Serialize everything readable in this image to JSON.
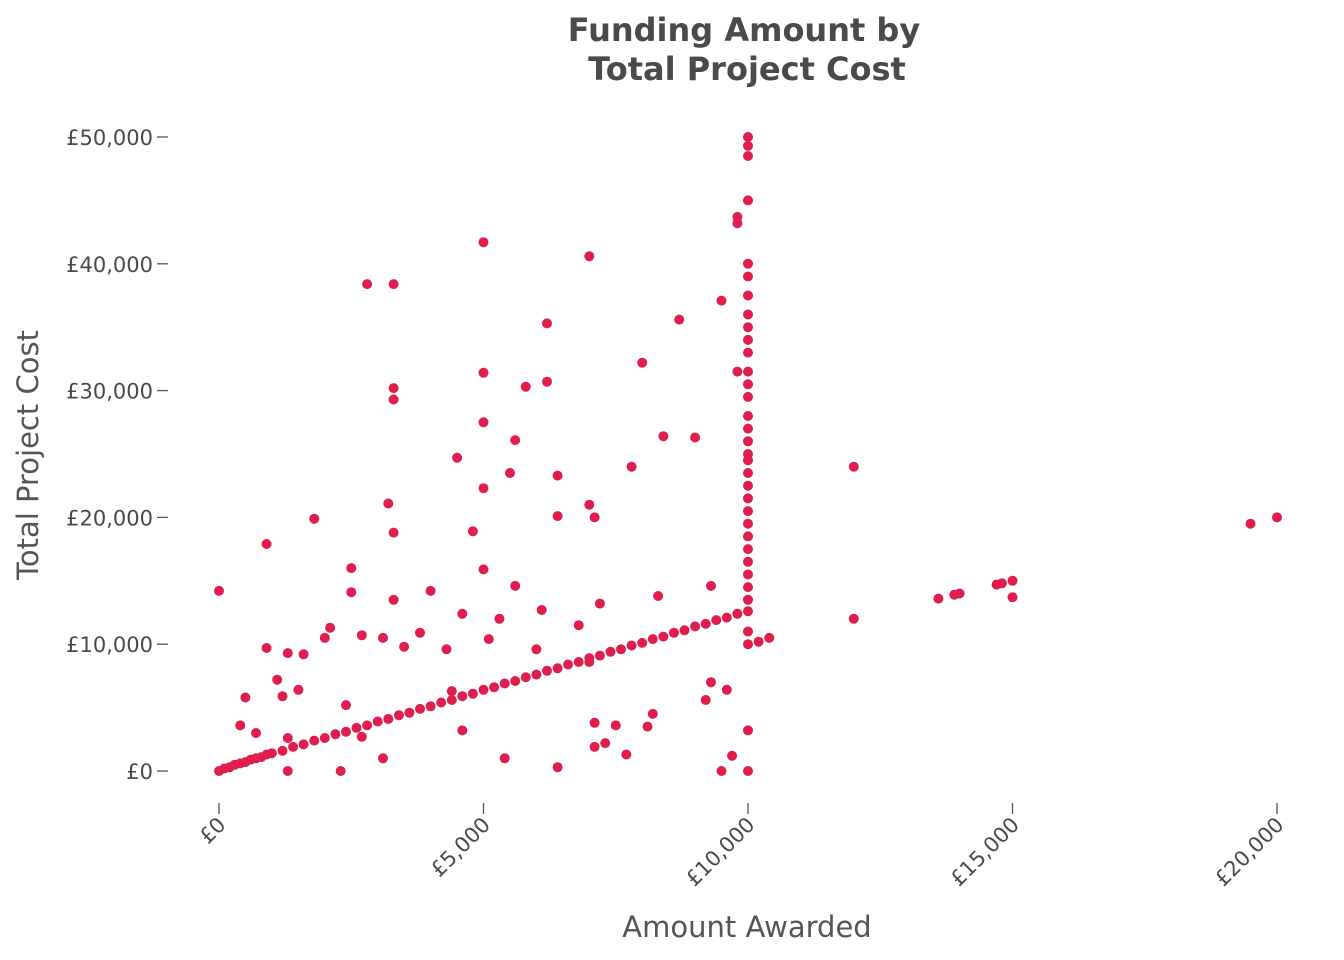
{
  "chart_data": {
    "type": "scatter",
    "title_lines": [
      "Funding Amount by",
      "Total Project Cost"
    ],
    "xlabel": "Amount Awarded",
    "ylabel": "Total Project Cost",
    "xlim": [
      -350,
      20250
    ],
    "ylim": [
      -2000,
      50500
    ],
    "x_ticks": [
      {
        "value": 0,
        "label": "£0"
      },
      {
        "value": 5000,
        "label": "£5,000"
      },
      {
        "value": 10000,
        "label": "£10,000"
      },
      {
        "value": 15000,
        "label": "£15,000"
      },
      {
        "value": 20000,
        "label": "£20,000"
      }
    ],
    "y_ticks": [
      {
        "value": 0,
        "label": "£0"
      },
      {
        "value": 10000,
        "label": "£10,000"
      },
      {
        "value": 20000,
        "label": "£20,000"
      },
      {
        "value": 30000,
        "label": "£30,000"
      },
      {
        "value": 40000,
        "label": "£40,000"
      },
      {
        "value": 50000,
        "label": "£50,000"
      }
    ],
    "grid": false,
    "legend": "none",
    "point_color": "#e01e4d",
    "points": [
      [
        0,
        14200
      ],
      [
        0,
        0
      ],
      [
        100,
        200
      ],
      [
        200,
        300
      ],
      [
        300,
        500
      ],
      [
        400,
        600
      ],
      [
        500,
        700
      ],
      [
        600,
        900
      ],
      [
        700,
        1000
      ],
      [
        800,
        1100
      ],
      [
        900,
        1300
      ],
      [
        1000,
        1400
      ],
      [
        1200,
        1600
      ],
      [
        1400,
        1900
      ],
      [
        1600,
        2100
      ],
      [
        1800,
        2400
      ],
      [
        2000,
        2600
      ],
      [
        2200,
        2900
      ],
      [
        2400,
        3100
      ],
      [
        2600,
        3400
      ],
      [
        2800,
        3600
      ],
      [
        3000,
        3900
      ],
      [
        3200,
        4100
      ],
      [
        3400,
        4400
      ],
      [
        3600,
        4600
      ],
      [
        3800,
        4900
      ],
      [
        4000,
        5100
      ],
      [
        4200,
        5400
      ],
      [
        4400,
        5600
      ],
      [
        4600,
        5900
      ],
      [
        4800,
        6100
      ],
      [
        5000,
        6400
      ],
      [
        5200,
        6600
      ],
      [
        5400,
        6900
      ],
      [
        5600,
        7100
      ],
      [
        5800,
        7400
      ],
      [
        6000,
        7600
      ],
      [
        6200,
        7900
      ],
      [
        6400,
        8100
      ],
      [
        6600,
        8400
      ],
      [
        6800,
        8600
      ],
      [
        7000,
        8900
      ],
      [
        7200,
        9100
      ],
      [
        7400,
        9400
      ],
      [
        7600,
        9600
      ],
      [
        7800,
        9900
      ],
      [
        8000,
        10100
      ],
      [
        8200,
        10400
      ],
      [
        8400,
        10600
      ],
      [
        8600,
        10900
      ],
      [
        8800,
        11100
      ],
      [
        9000,
        11400
      ],
      [
        9200,
        11600
      ],
      [
        9400,
        11900
      ],
      [
        9600,
        12100
      ],
      [
        9800,
        12400
      ],
      [
        10000,
        12600
      ],
      [
        10000,
        13500
      ],
      [
        10000,
        14500
      ],
      [
        10000,
        15500
      ],
      [
        10000,
        16500
      ],
      [
        10000,
        17500
      ],
      [
        10000,
        18500
      ],
      [
        10000,
        19500
      ],
      [
        10000,
        20500
      ],
      [
        10000,
        21500
      ],
      [
        10000,
        22500
      ],
      [
        10000,
        23500
      ],
      [
        10000,
        24500
      ],
      [
        10000,
        25000
      ],
      [
        10000,
        26000
      ],
      [
        10000,
        27000
      ],
      [
        10000,
        28000
      ],
      [
        10000,
        29500
      ],
      [
        10000,
        30500
      ],
      [
        10000,
        31500
      ],
      [
        10000,
        33000
      ],
      [
        10000,
        34000
      ],
      [
        10000,
        35000
      ],
      [
        10000,
        36000
      ],
      [
        10000,
        37500
      ],
      [
        10000,
        39000
      ],
      [
        10000,
        40000
      ],
      [
        10000,
        45000
      ],
      [
        10000,
        48500
      ],
      [
        10000,
        49300
      ],
      [
        10000,
        50000
      ],
      [
        10000,
        11000
      ],
      [
        10000,
        10000
      ],
      [
        10000,
        3200
      ],
      [
        10000,
        0
      ],
      [
        9800,
        43700
      ],
      [
        9800,
        43200
      ],
      [
        9800,
        31500
      ],
      [
        9500,
        37100
      ],
      [
        5000,
        41700
      ],
      [
        7000,
        40600
      ],
      [
        2800,
        38400
      ],
      [
        3300,
        38400
      ],
      [
        6200,
        35300
      ],
      [
        8700,
        35600
      ],
      [
        8000,
        32200
      ],
      [
        5000,
        31400
      ],
      [
        3300,
        30200
      ],
      [
        3300,
        29300
      ],
      [
        5800,
        30300
      ],
      [
        6200,
        30700
      ],
      [
        5000,
        27500
      ],
      [
        5600,
        26100
      ],
      [
        8400,
        26400
      ],
      [
        9000,
        26300
      ],
      [
        4500,
        24700
      ],
      [
        6400,
        23300
      ],
      [
        5500,
        23500
      ],
      [
        5000,
        22300
      ],
      [
        7800,
        24000
      ],
      [
        3200,
        21100
      ],
      [
        7000,
        21000
      ],
      [
        7100,
        20000
      ],
      [
        6400,
        20100
      ],
      [
        4800,
        18900
      ],
      [
        3300,
        18800
      ],
      [
        1800,
        19900
      ],
      [
        900,
        17900
      ],
      [
        2500,
        16000
      ],
      [
        5000,
        15900
      ],
      [
        2500,
        14100
      ],
      [
        3300,
        13500
      ],
      [
        4000,
        14200
      ],
      [
        5600,
        14600
      ],
      [
        6100,
        12700
      ],
      [
        7200,
        13200
      ],
      [
        8300,
        13800
      ],
      [
        9300,
        14600
      ],
      [
        2100,
        11300
      ],
      [
        3100,
        10500
      ],
      [
        3800,
        10900
      ],
      [
        4600,
        12400
      ],
      [
        5300,
        12000
      ],
      [
        6800,
        11500
      ],
      [
        900,
        9700
      ],
      [
        1300,
        9300
      ],
      [
        1600,
        9200
      ],
      [
        2000,
        10500
      ],
      [
        2700,
        10700
      ],
      [
        3500,
        9800
      ],
      [
        4300,
        9600
      ],
      [
        5100,
        10400
      ],
      [
        6000,
        9600
      ],
      [
        7000,
        8600
      ],
      [
        9300,
        7000
      ],
      [
        9600,
        6400
      ],
      [
        1100,
        7200
      ],
      [
        1500,
        6400
      ],
      [
        500,
        5800
      ],
      [
        1200,
        5900
      ],
      [
        2400,
        5200
      ],
      [
        4400,
        6300
      ],
      [
        400,
        3600
      ],
      [
        700,
        3000
      ],
      [
        1300,
        2600
      ],
      [
        2700,
        2700
      ],
      [
        4600,
        3200
      ],
      [
        5400,
        1000
      ],
      [
        3100,
        1000
      ],
      [
        2300,
        0
      ],
      [
        1300,
        0
      ],
      [
        6400,
        300
      ],
      [
        7100,
        1900
      ],
      [
        7300,
        2200
      ],
      [
        7700,
        1300
      ],
      [
        7500,
        3600
      ],
      [
        7100,
        3800
      ],
      [
        8200,
        4500
      ],
      [
        9200,
        5600
      ],
      [
        9500,
        0
      ],
      [
        8100,
        3500
      ],
      [
        9700,
        1200
      ],
      [
        10200,
        10200
      ],
      [
        10400,
        10500
      ],
      [
        12000,
        24000
      ],
      [
        12000,
        12000
      ],
      [
        13600,
        13600
      ],
      [
        13900,
        13900
      ],
      [
        14000,
        14000
      ],
      [
        14700,
        14700
      ],
      [
        14800,
        14800
      ],
      [
        15000,
        15000
      ],
      [
        15000,
        13700
      ],
      [
        19500,
        19500
      ],
      [
        20000,
        20000
      ]
    ]
  }
}
